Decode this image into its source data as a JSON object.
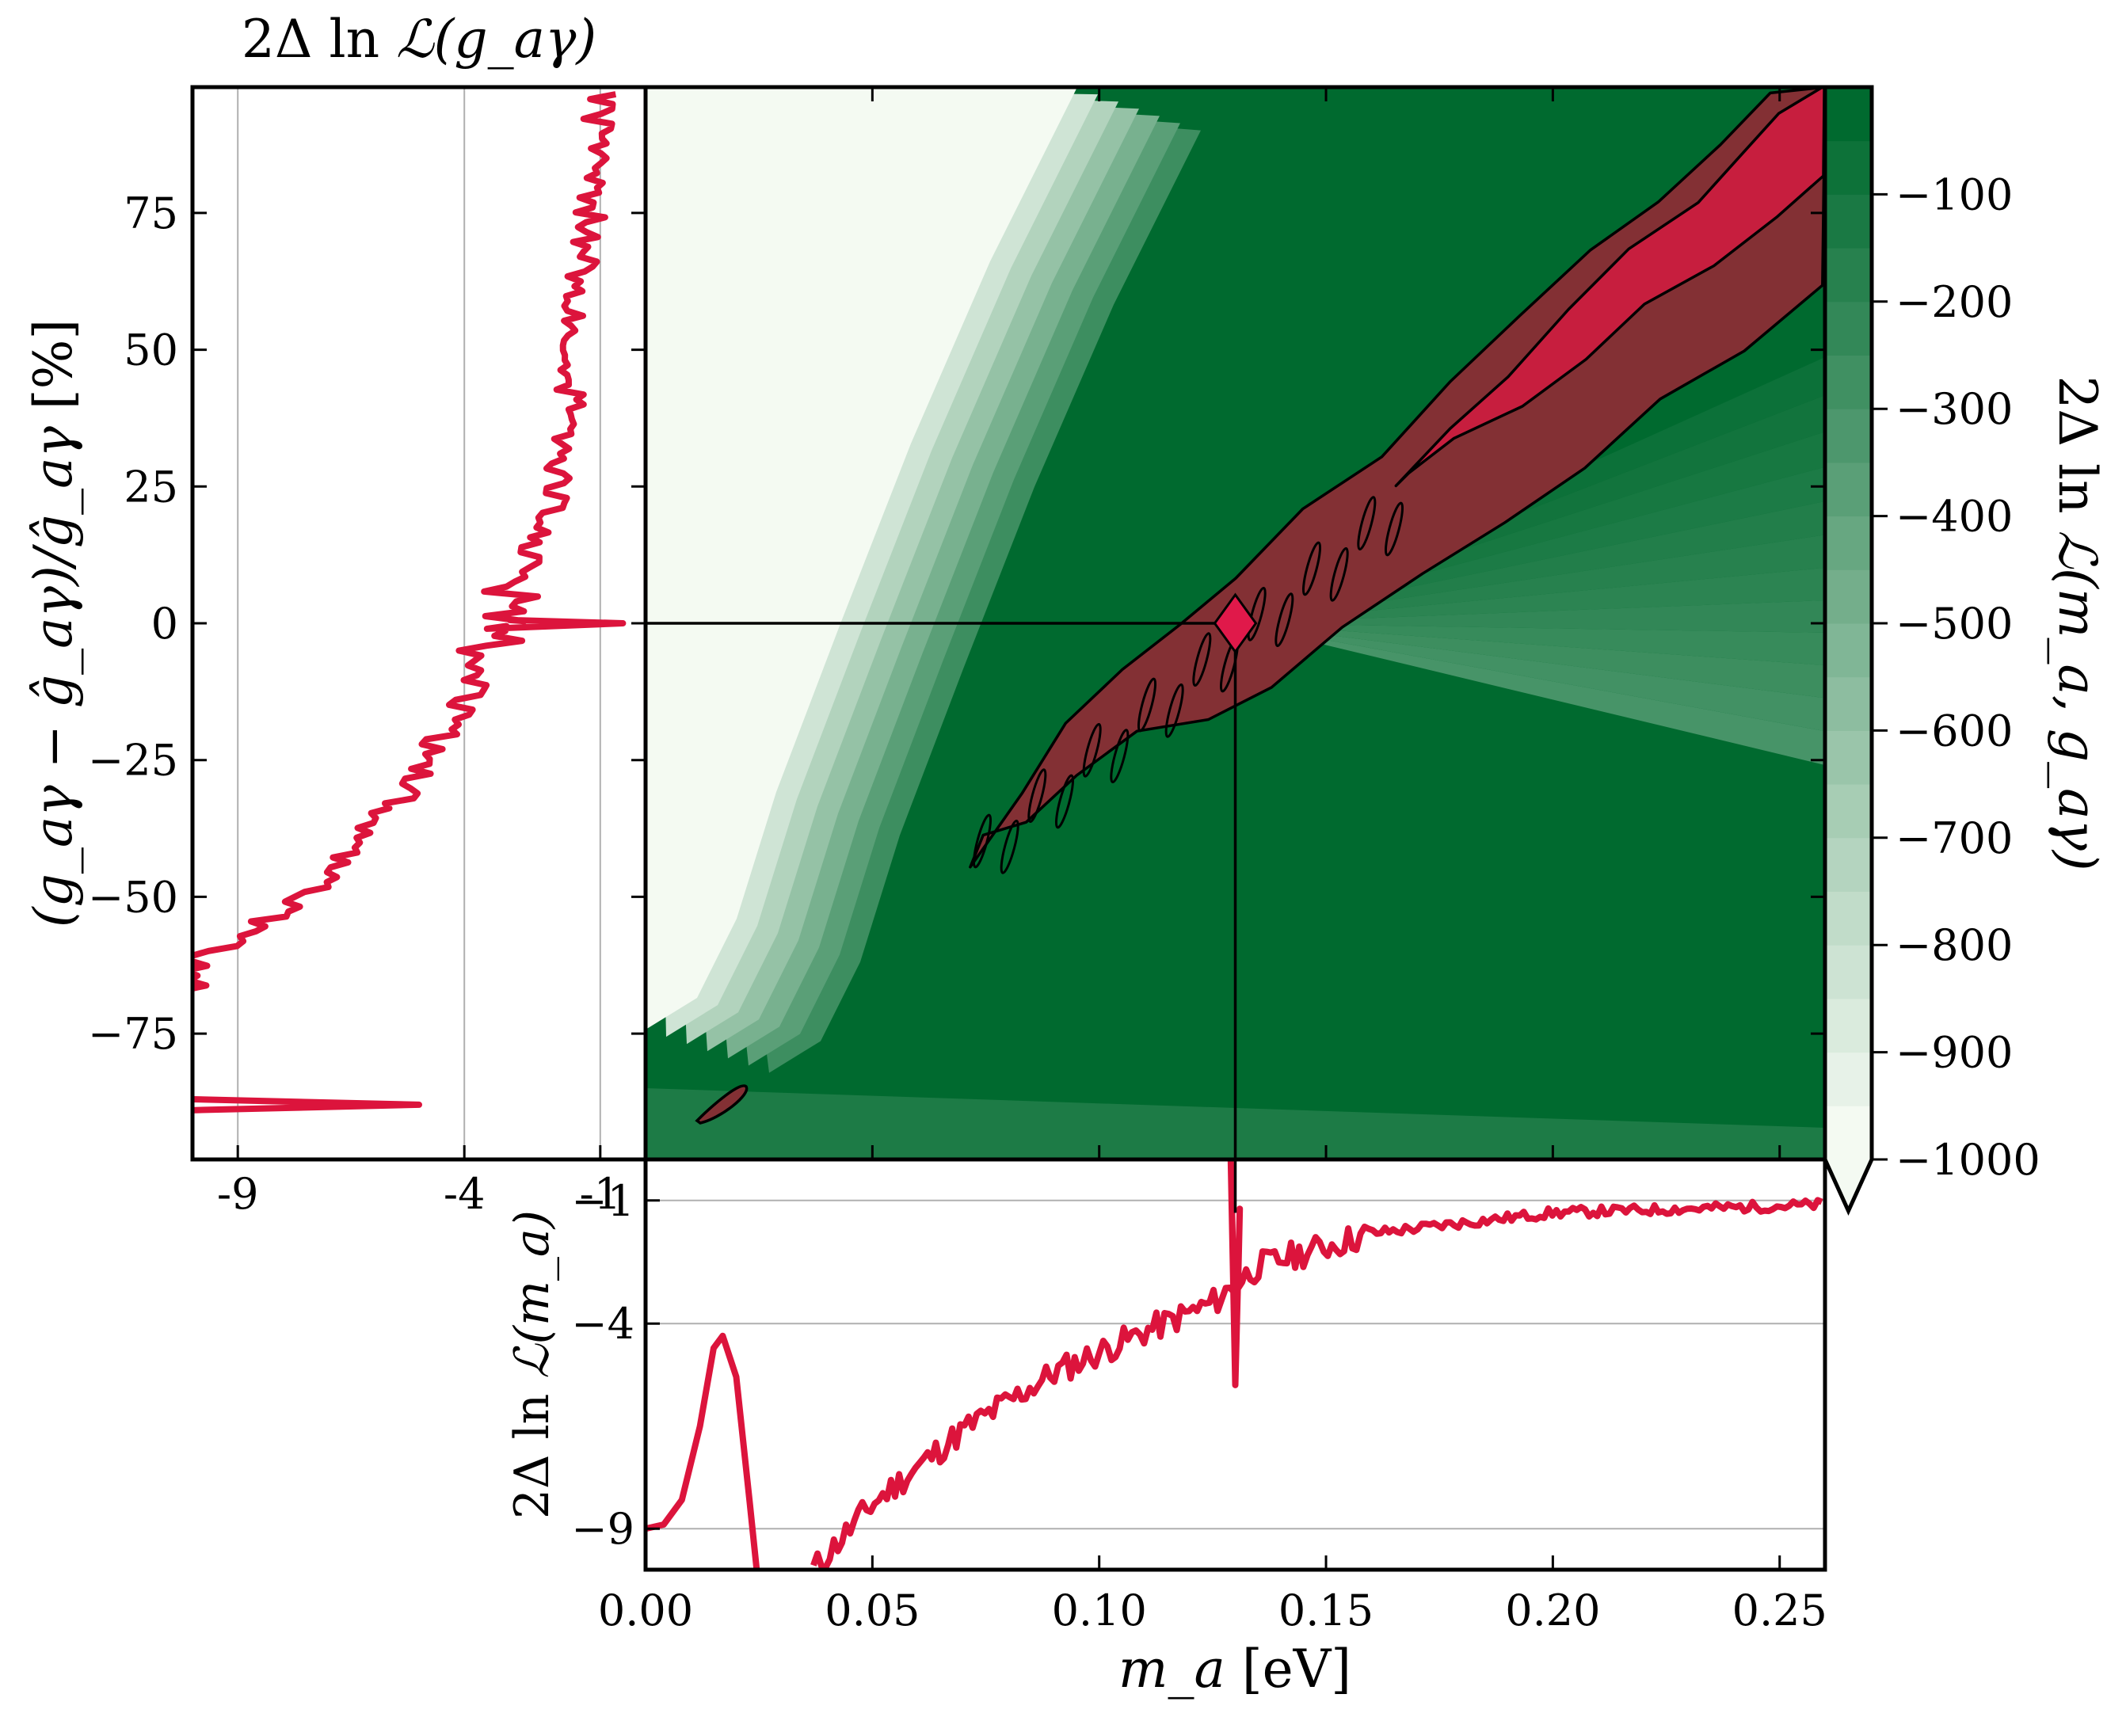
{
  "chart_data": [
    {
      "panel": "main",
      "type": "heatmap",
      "xlabel": "m_a [eV]",
      "xlabel_math": "m_a",
      "xlabel_unit": " [eV]",
      "xlim": [
        0.0,
        0.26
      ],
      "x_ticks": [
        "0.00",
        "0.05",
        "0.10",
        "0.15",
        "0.20",
        "0.25"
      ],
      "x_tick_values": [
        0.0,
        0.05,
        0.1,
        0.15,
        0.2,
        0.25
      ],
      "ylim": [
        -98,
        98
      ],
      "best_fit": {
        "m_a": 0.13,
        "g_rel": 0
      },
      "colorbar": {
        "label": "2Δ ln ℒ(m_a, g_aγ)",
        "label_pre": "2Δ ln ",
        "label_math": "ℒ(m_a, g_aγ)",
        "ticks": [
          "−100",
          "−200",
          "−300",
          "−400",
          "−500",
          "−600",
          "−700",
          "−800",
          "−900",
          "−1000"
        ],
        "tick_values": [
          -100,
          -200,
          -300,
          -400,
          -500,
          -600,
          -700,
          -800,
          -900,
          -1000
        ],
        "range": [
          -1000,
          0
        ],
        "extend": "min"
      },
      "colors": {
        "green_dark": "#006a2f",
        "green_light": "#f4faf2",
        "region_outer": "#833034",
        "region_inner": "#c71e3e",
        "marker": "#e0194a"
      }
    },
    {
      "panel": "left",
      "type": "line",
      "title": "2Δ ln ℒ(g_aγ)",
      "title_pre": "2Δ ln ",
      "title_math": "ℒ(g_aγ)",
      "ylabel": "(g_aγ − ĝ_aγ)/ĝ_aγ [%]",
      "ylabel_math": "(g_aγ − ĝ_aγ)/ĝ_aγ",
      "ylabel_unit": " [%]",
      "xlim": [
        -10,
        0
      ],
      "ylim": [
        -98,
        98
      ],
      "x_ticks": [
        "-9",
        "-4",
        "-1"
      ],
      "x_tick_values": [
        -9,
        -4,
        -1
      ],
      "y_ticks": [
        "75",
        "50",
        "25",
        "0",
        "−25",
        "−50",
        "−75"
      ],
      "y_tick_values": [
        75,
        50,
        25,
        0,
        -25,
        -50,
        -75
      ],
      "grid": "vertical",
      "series": [
        {
          "color": "#dc143c",
          "envelope": [
            [
              -10.0,
              -61
            ],
            [
              -9.0,
              -58
            ],
            [
              -7.2,
              -48
            ],
            [
              -5.2,
              -30
            ],
            [
              -4.0,
              -14
            ],
            [
              -3.5,
              -6
            ],
            [
              -3.0,
              5
            ],
            [
              -2.1,
              20
            ],
            [
              -1.6,
              45
            ],
            [
              -1.3,
              70
            ],
            [
              -1.1,
              85
            ],
            [
              -1.0,
              97
            ]
          ]
        },
        {
          "color": "#dc143c",
          "feature": "spike",
          "y": 0,
          "x": -0.5
        },
        {
          "color": "#dc143c",
          "feature": "lobe",
          "y": [
            -87,
            -89
          ],
          "x_min": -5.0
        }
      ]
    },
    {
      "panel": "bottom",
      "type": "line",
      "ylabel": "2Δ ln ℒ(m_a)",
      "ylabel_pre": "2Δ ln ",
      "ylabel_math": "ℒ(m_a)",
      "xlim": [
        0.0,
        0.26
      ],
      "ylim": [
        -10,
        0
      ],
      "y_ticks": [
        "−1",
        "−4",
        "−9"
      ],
      "y_tick_values": [
        -1,
        -4,
        -9
      ],
      "grid": "horizontal",
      "series": [
        {
          "color": "#dc143c",
          "points": [
            [
              0.0,
              -9.0
            ],
            [
              0.004,
              -8.9
            ],
            [
              0.008,
              -8.3
            ],
            [
              0.012,
              -6.5
            ],
            [
              0.015,
              -4.6
            ],
            [
              0.017,
              -4.3
            ],
            [
              0.02,
              -5.3
            ],
            [
              0.023,
              -8.4
            ],
            [
              0.0245,
              -10.0
            ]
          ]
        },
        {
          "color": "#dc143c",
          "envelope": [
            [
              0.037,
              -10.0
            ],
            [
              0.05,
              -8.4
            ],
            [
              0.07,
              -6.6
            ],
            [
              0.09,
              -5.2
            ],
            [
              0.11,
              -4.2
            ],
            [
              0.125,
              -3.5
            ],
            [
              0.135,
              -2.6
            ],
            [
              0.16,
              -1.8
            ],
            [
              0.2,
              -1.3
            ],
            [
              0.26,
              -1.1
            ]
          ]
        },
        {
          "color": "#dc143c",
          "feature": "spike",
          "x": 0.13,
          "y_max": 0.0,
          "y_min": -5.5
        }
      ]
    }
  ]
}
